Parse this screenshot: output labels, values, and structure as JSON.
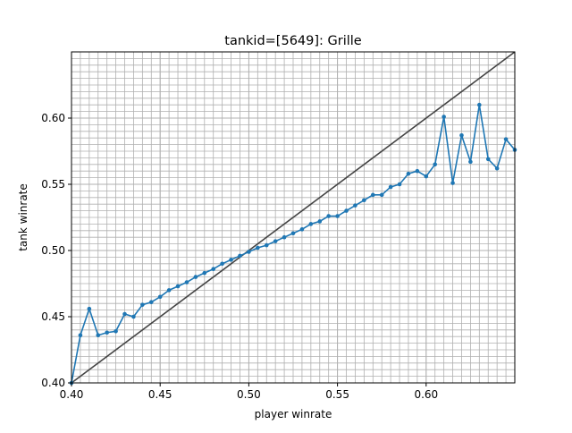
{
  "chart_data": {
    "type": "line",
    "title": "tankid=[5649]: Grille",
    "xlabel": "player winrate",
    "ylabel": "tank winrate",
    "xlim": [
      0.4,
      0.65
    ],
    "ylim": [
      0.4,
      0.65
    ],
    "xticks": [
      0.4,
      0.45,
      0.5,
      0.55,
      0.6
    ],
    "yticks": [
      0.4,
      0.45,
      0.5,
      0.55,
      0.6
    ],
    "xtick_labels": [
      "0.40",
      "0.45",
      "0.50",
      "0.55",
      "0.60"
    ],
    "ytick_labels": [
      "0.40",
      "0.45",
      "0.50",
      "0.55",
      "0.60"
    ],
    "grid": true,
    "minor_grid": true,
    "series": [
      {
        "color": "#1f77b4",
        "marker": "dot",
        "x": [
          0.4,
          0.405,
          0.41,
          0.415,
          0.42,
          0.425,
          0.43,
          0.435,
          0.44,
          0.445,
          0.45,
          0.455,
          0.46,
          0.465,
          0.47,
          0.475,
          0.48,
          0.485,
          0.49,
          0.495,
          0.5,
          0.505,
          0.51,
          0.515,
          0.52,
          0.525,
          0.53,
          0.535,
          0.54,
          0.545,
          0.55,
          0.555,
          0.56,
          0.565,
          0.57,
          0.575,
          0.58,
          0.585,
          0.59,
          0.595,
          0.6,
          0.605,
          0.61,
          0.615,
          0.62,
          0.625,
          0.63,
          0.635,
          0.64,
          0.645,
          0.65
        ],
        "y": [
          0.4,
          0.436,
          0.456,
          0.436,
          0.438,
          0.439,
          0.452,
          0.45,
          0.459,
          0.461,
          0.465,
          0.47,
          0.473,
          0.476,
          0.48,
          0.483,
          0.486,
          0.49,
          0.493,
          0.496,
          0.499,
          0.502,
          0.504,
          0.507,
          0.51,
          0.513,
          0.516,
          0.52,
          0.522,
          0.526,
          0.526,
          0.53,
          0.534,
          0.538,
          0.542,
          0.542,
          0.548,
          0.55,
          0.558,
          0.56,
          0.556,
          0.565,
          0.601,
          0.551,
          0.587,
          0.567,
          0.61,
          0.569,
          0.562,
          0.584,
          0.576
        ]
      }
    ],
    "reference_line": {
      "color": "#444444",
      "x": [
        0.4,
        0.65
      ],
      "y": [
        0.4,
        0.65
      ]
    }
  }
}
